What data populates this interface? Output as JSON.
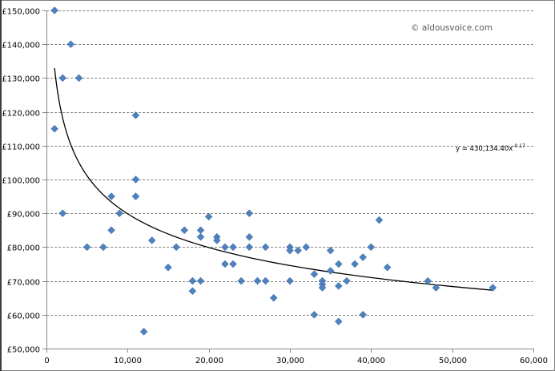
{
  "chart_data": {
    "type": "scatter",
    "title": "",
    "xlabel": "",
    "ylabel": "",
    "xlim": [
      0,
      60000
    ],
    "ylim": [
      50000,
      150000
    ],
    "x_ticks": [
      "0",
      "10,000",
      "20,000",
      "30,000",
      "40,000",
      "50,000",
      "60,000"
    ],
    "y_ticks": [
      "£50,000",
      "£60,000",
      "£70,000",
      "£80,000",
      "£90,000",
      "£100,000",
      "£110,000",
      "£120,000",
      "£130,000",
      "£140,000",
      "£150,000"
    ],
    "grid": {
      "horizontal": true,
      "vertical": false,
      "style": "dashed"
    },
    "legend": "none",
    "marker": {
      "shape": "diamond",
      "color": "#4f81bd"
    },
    "series": [
      {
        "name": "Data",
        "points": [
          [
            1000,
            150000
          ],
          [
            3000,
            140000
          ],
          [
            2000,
            130000
          ],
          [
            4000,
            130000
          ],
          [
            1000,
            115000
          ],
          [
            11000,
            119000
          ],
          [
            11000,
            100000
          ],
          [
            11000,
            95000
          ],
          [
            8000,
            95000
          ],
          [
            2000,
            90000
          ],
          [
            9000,
            90000
          ],
          [
            8000,
            85000
          ],
          [
            5000,
            80000
          ],
          [
            7000,
            80000
          ],
          [
            13000,
            82000
          ],
          [
            16000,
            80000
          ],
          [
            15000,
            74000
          ],
          [
            12000,
            55000
          ],
          [
            17000,
            85000
          ],
          [
            19000,
            85000
          ],
          [
            19000,
            83000
          ],
          [
            20000,
            89000
          ],
          [
            21000,
            83000
          ],
          [
            21000,
            82000
          ],
          [
            22000,
            80000
          ],
          [
            23000,
            80000
          ],
          [
            25000,
            80000
          ],
          [
            25000,
            83000
          ],
          [
            25000,
            90000
          ],
          [
            27000,
            80000
          ],
          [
            22000,
            75000
          ],
          [
            23000,
            75000
          ],
          [
            18000,
            70000
          ],
          [
            18000,
            67000
          ],
          [
            19000,
            70000
          ],
          [
            24000,
            70000
          ],
          [
            26000,
            70000
          ],
          [
            27000,
            70000
          ],
          [
            28000,
            65000
          ],
          [
            30000,
            80000
          ],
          [
            30000,
            79000
          ],
          [
            31000,
            79000
          ],
          [
            32000,
            80000
          ],
          [
            30000,
            70000
          ],
          [
            33000,
            72000
          ],
          [
            33000,
            60000
          ],
          [
            34000,
            70000
          ],
          [
            34000,
            69000
          ],
          [
            34000,
            68000
          ],
          [
            35000,
            79000
          ],
          [
            35000,
            73000
          ],
          [
            36000,
            75000
          ],
          [
            36000,
            68500
          ],
          [
            36000,
            58000
          ],
          [
            37000,
            70000
          ],
          [
            38000,
            75000
          ],
          [
            39000,
            77000
          ],
          [
            39000,
            60000
          ],
          [
            40000,
            80000
          ],
          [
            41000,
            88000
          ],
          [
            42000,
            74000
          ],
          [
            47000,
            70000
          ],
          [
            48000,
            68000
          ],
          [
            55000,
            68000
          ]
        ]
      }
    ],
    "trendline": {
      "type": "power",
      "coefficient": 430134.4,
      "exponent": -0.17,
      "x_range": [
        1000,
        55000
      ],
      "label": "y = 430,134.40x",
      "label_exponent": "-0.17",
      "color": "#000000"
    },
    "annotations": [
      "© aldousvoice.com"
    ]
  },
  "watermark": "© aldousvoice.com",
  "equation": {
    "base": "y = 430,134.40x",
    "exponent": "-0.17"
  }
}
